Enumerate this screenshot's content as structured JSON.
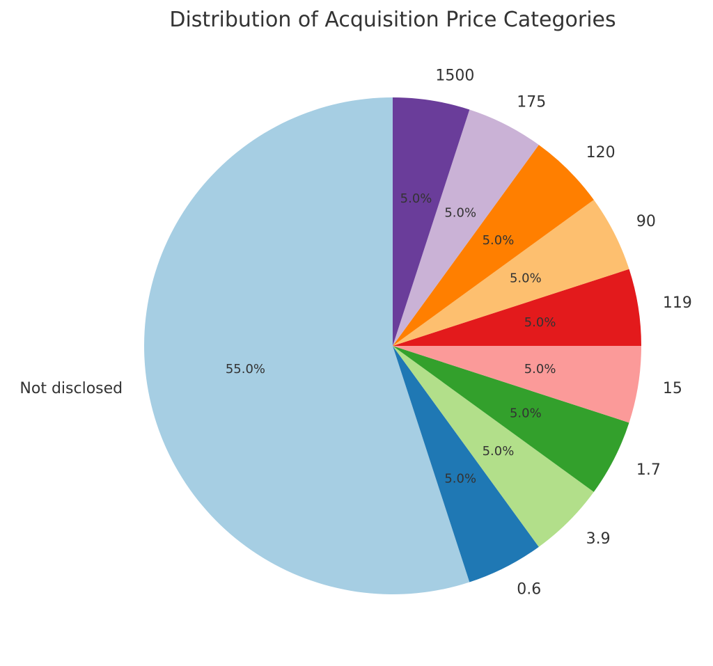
{
  "chart_data": {
    "type": "pie",
    "title": "Distribution of Acquisition Price Categories",
    "start_angle_deg": 90,
    "direction": "counterclockwise",
    "slices": [
      {
        "label": "Not disclosed",
        "value": 55.0,
        "pct_label": "55.0%",
        "color": "#a6cee3"
      },
      {
        "label": "0.6",
        "value": 5.0,
        "pct_label": "5.0%",
        "color": "#1f78b4"
      },
      {
        "label": "3.9",
        "value": 5.0,
        "pct_label": "5.0%",
        "color": "#b2df8a"
      },
      {
        "label": "1.7",
        "value": 5.0,
        "pct_label": "5.0%",
        "color": "#33a02c"
      },
      {
        "label": "15",
        "value": 5.0,
        "pct_label": "5.0%",
        "color": "#fb9a99"
      },
      {
        "label": "119",
        "value": 5.0,
        "pct_label": "5.0%",
        "color": "#e31a1c"
      },
      {
        "label": "90",
        "value": 5.0,
        "pct_label": "5.0%",
        "color": "#fdbf6f"
      },
      {
        "label": "120",
        "value": 5.0,
        "pct_label": "5.0%",
        "color": "#ff7f00"
      },
      {
        "label": "175",
        "value": 5.0,
        "pct_label": "5.0%",
        "color": "#cab2d6"
      },
      {
        "label": "1500",
        "value": 5.0,
        "pct_label": "5.0%",
        "color": "#6a3d9a"
      }
    ]
  }
}
